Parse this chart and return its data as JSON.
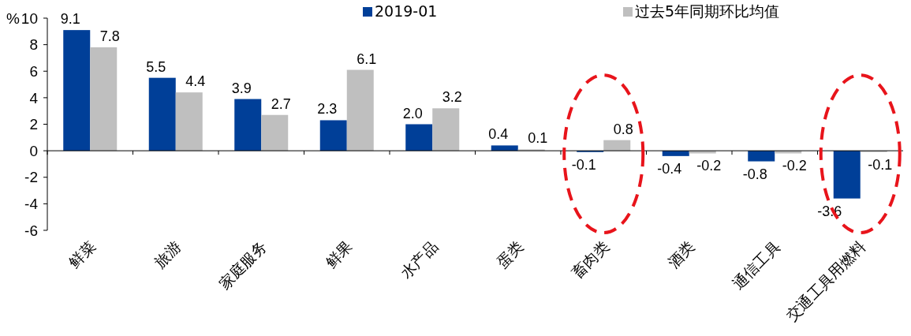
{
  "chart_data": {
    "type": "bar",
    "ylabel": "%",
    "categories": [
      "鲜菜",
      "旅游",
      "家庭服务",
      "鲜果",
      "水产品",
      "蛋类",
      "畜肉类",
      "酒类",
      "通信工具",
      "交通工具用燃料"
    ],
    "series": [
      {
        "name": "2019-01",
        "color": "#003f98",
        "values": [
          9.1,
          5.5,
          3.9,
          2.3,
          2.0,
          0.4,
          -0.1,
          -0.4,
          -0.8,
          -3.6
        ],
        "value_labels": [
          "9.1",
          "5.5",
          "3.9",
          "2.3",
          "2.0",
          "0.4",
          "-0.1",
          "-0.4",
          "-0.8",
          "-3.6"
        ]
      },
      {
        "name": "过去5年同期环比均值",
        "color": "#bfbfbf",
        "values": [
          7.8,
          4.4,
          2.7,
          6.1,
          3.2,
          0.1,
          0.8,
          -0.2,
          -0.2,
          -0.1
        ],
        "value_labels": [
          "7.8",
          "4.4",
          "2.7",
          "6.1",
          "3.2",
          "0.1",
          "0.8",
          "-0.2",
          "-0.2",
          "-0.1"
        ]
      }
    ],
    "ylim": [
      -6,
      10
    ],
    "yticks": [
      -6,
      -4,
      -2,
      0,
      2,
      4,
      6,
      8,
      10
    ],
    "legend": "top"
  }
}
